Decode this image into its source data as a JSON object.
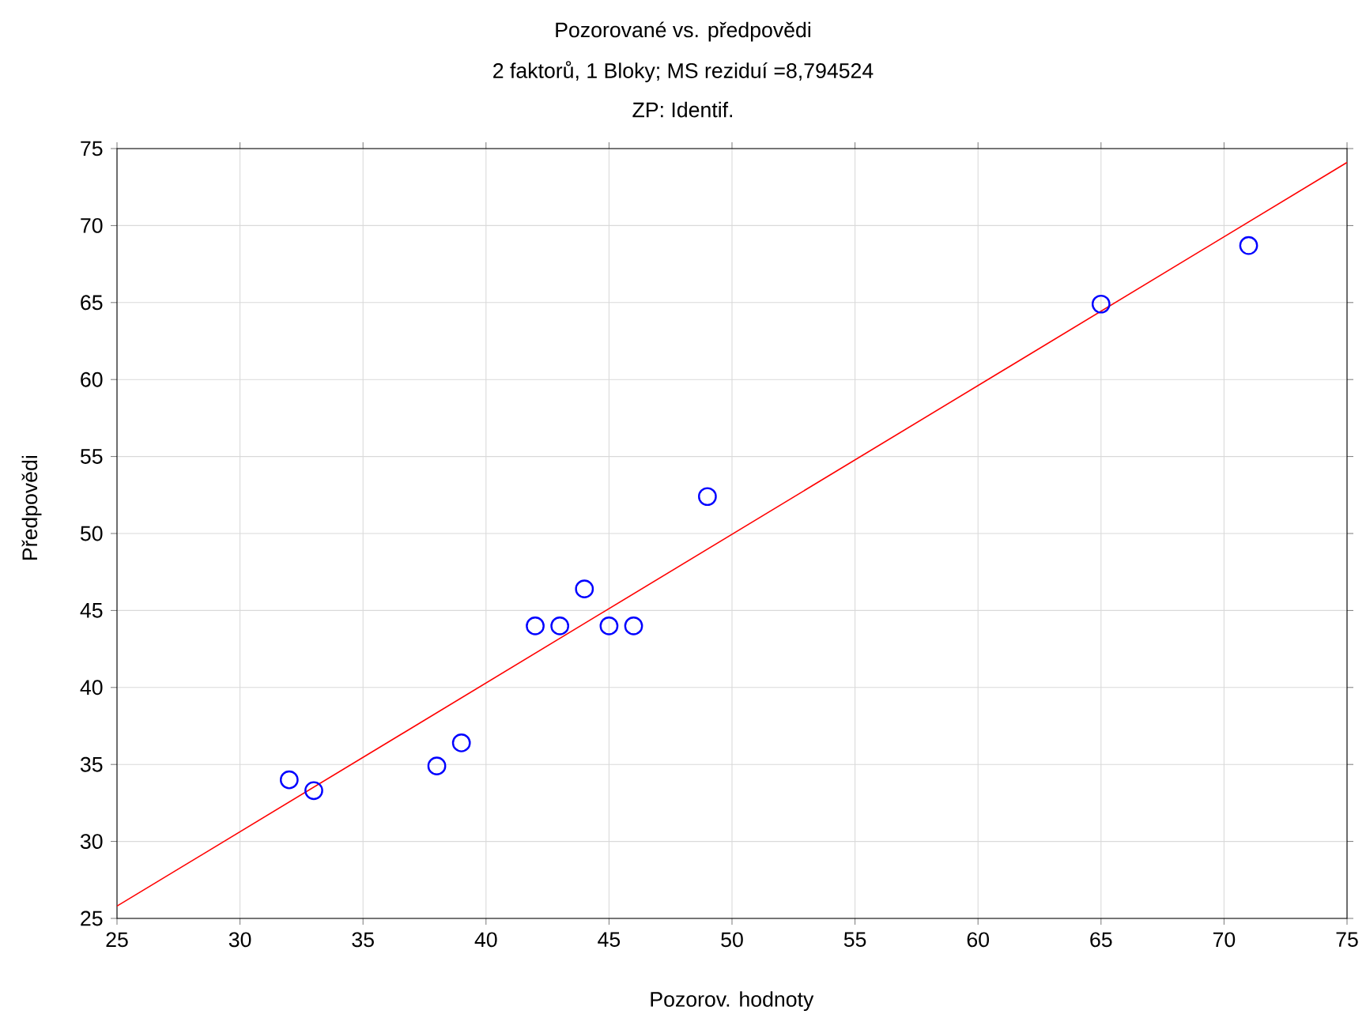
{
  "chart_data": {
    "type": "scatter",
    "title": "Pozorované vs. předpovědi",
    "subtitle": "2 faktorů, 1 Bloky; MS reziduí =8,794524",
    "annotations": [
      "ZP: Identif."
    ],
    "xlabel": "Pozorov. hodnoty",
    "ylabel": "Předpovědi",
    "series": [
      {
        "color": "#0000ff",
        "x": [
          32,
          33,
          38,
          39,
          42,
          43,
          44,
          45,
          46,
          49,
          65,
          71
        ],
        "values": [
          34.0,
          33.3,
          34.9,
          36.4,
          44.0,
          44.0,
          46.4,
          44.0,
          44.0,
          52.4,
          64.9,
          68.7
        ]
      },
      {
        "type": "line",
        "marker": "none",
        "color": "#ff0000",
        "x": [
          25,
          75
        ],
        "values": [
          25.8,
          74.1
        ]
      }
    ],
    "xlim": [
      25,
      75
    ],
    "ylim": [
      25,
      75
    ],
    "xticks": [
      25,
      30,
      35,
      40,
      45,
      50,
      55,
      60,
      65,
      70,
      75
    ],
    "yticks": [
      25,
      30,
      35,
      40,
      45,
      50,
      55,
      60,
      65,
      70,
      75
    ],
    "grid": true,
    "marker": "circle"
  }
}
